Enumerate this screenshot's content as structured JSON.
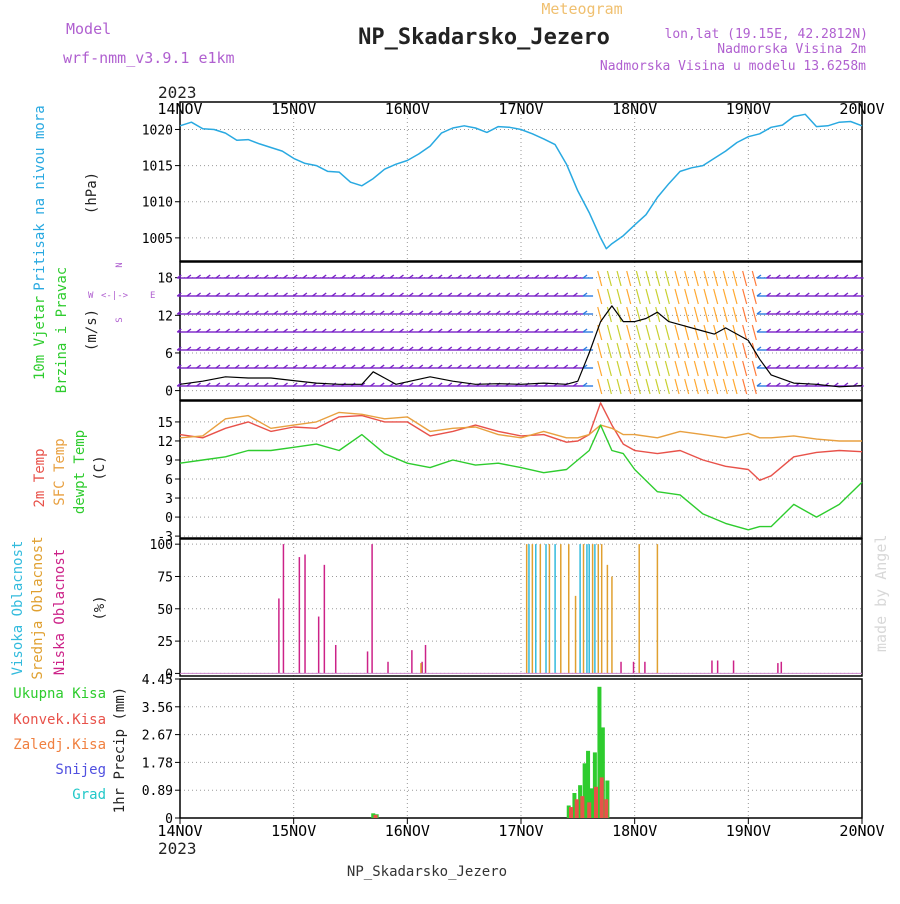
{
  "header": {
    "model_label": "Model",
    "model_name": "wrf-nmm_v3.9.1 e1km",
    "chart_kind": "Meteogram",
    "station": "NP_Skadarsko_Jezero",
    "lonlat": "lon,lat (19.15E, 42.2812N)",
    "altitude": "Nadmorska Visina 2m",
    "model_altitude": "Nadmorska Visina u modelu 13.6258m",
    "footer_station": "NP_Skadarsko_Jezero",
    "watermark": "made by Angel",
    "year_top": "2023",
    "year_bottom": "2023",
    "wind_compass": {
      "n": "N",
      "w": "W",
      "e": "E",
      "s": "S"
    }
  },
  "colors": {
    "pressure": "#29a9e1",
    "wind_speed": "#000000",
    "temp2m": "#e8524a",
    "sfc_temp": "#e8a040",
    "dewpt": "#2ecc2e",
    "cloud_high": "#33bbdd",
    "cloud_mid": "#e0a030",
    "cloud_low": "#cc2288",
    "precip_total": "#2ecc2e",
    "precip_conv": "#e8524a",
    "title_purple": "#b060d0",
    "meteogram_orange": "#f0c070"
  },
  "chart_data": [
    {
      "type": "line",
      "panel": "pressure",
      "ylabel": [
        "Pritisak na nivou mora",
        "(hPa)"
      ],
      "yticks": [
        1005,
        1010,
        1015,
        1020
      ],
      "ylim": [
        1001.8,
        1023.8
      ],
      "xticks": [
        "14NOV",
        "15NOV",
        "16NOV",
        "17NOV",
        "18NOV",
        "19NOV",
        "20NOV"
      ],
      "xlim_days": [
        0,
        6
      ],
      "x": [
        0,
        0.1,
        0.2,
        0.3,
        0.4,
        0.5,
        0.6,
        0.7,
        0.8,
        0.9,
        1.0,
        1.1,
        1.2,
        1.3,
        1.4,
        1.5,
        1.6,
        1.7,
        1.8,
        1.9,
        2.0,
        2.1,
        2.2,
        2.3,
        2.4,
        2.5,
        2.6,
        2.7,
        2.8,
        2.9,
        3.0,
        3.1,
        3.2,
        3.3,
        3.4,
        3.5,
        3.6,
        3.7,
        3.75,
        3.8,
        3.9,
        4.0,
        4.1,
        4.2,
        4.3,
        4.4,
        4.5,
        4.6,
        4.7,
        4.8,
        4.9,
        5.0,
        5.1,
        5.2,
        5.3,
        5.4,
        5.5,
        5.6,
        5.7,
        5.8,
        5.9,
        6.0
      ],
      "values": [
        1020.5,
        1021.0,
        1020.1,
        1020.0,
        1019.5,
        1018.5,
        1018.6,
        1018.0,
        1017.5,
        1017.0,
        1016.0,
        1015.3,
        1015.0,
        1014.2,
        1014.1,
        1012.7,
        1012.2,
        1013.2,
        1014.5,
        1015.2,
        1015.7,
        1016.6,
        1017.7,
        1019.5,
        1020.2,
        1020.5,
        1020.2,
        1019.6,
        1020.4,
        1020.3,
        1020.0,
        1019.4,
        1018.7,
        1017.9,
        1015.2,
        1011.5,
        1008.5,
        1005.0,
        1003.5,
        1004.2,
        1005.3,
        1006.8,
        1008.2,
        1010.6,
        1012.5,
        1014.2,
        1014.7,
        1015.0,
        1016.0,
        1017.0,
        1018.2,
        1019.0,
        1019.4,
        1020.3,
        1020.6,
        1021.8,
        1022.1,
        1020.4,
        1020.5,
        1021.0,
        1021.1,
        1020.5
      ]
    },
    {
      "type": "line",
      "panel": "wind",
      "ylabel": [
        "10m Vjetar",
        "Brzina i Pravac",
        "(m/s)"
      ],
      "yticks": [
        0,
        6,
        12,
        18
      ],
      "ylim": [
        -1.5,
        20.5
      ],
      "x": [
        0,
        0.2,
        0.4,
        0.6,
        0.8,
        1.0,
        1.2,
        1.4,
        1.6,
        1.7,
        1.8,
        1.9,
        2.0,
        2.2,
        2.4,
        2.6,
        2.8,
        3.0,
        3.2,
        3.4,
        3.5,
        3.6,
        3.7,
        3.8,
        3.9,
        4.0,
        4.1,
        4.2,
        4.3,
        4.4,
        4.6,
        4.7,
        4.8,
        5.0,
        5.1,
        5.2,
        5.4,
        5.6,
        5.8,
        6.0
      ],
      "values": [
        1.0,
        1.5,
        2.2,
        2.0,
        2.0,
        1.6,
        1.2,
        1.0,
        1.0,
        3.0,
        2.0,
        1.0,
        1.4,
        2.2,
        1.5,
        1.0,
        1.1,
        1.0,
        1.2,
        1.0,
        1.5,
        6.0,
        11.0,
        13.5,
        11.0,
        11.0,
        11.5,
        12.5,
        11.0,
        10.5,
        9.5,
        9.0,
        10.0,
        8.0,
        5.0,
        2.5,
        1.2,
        1.0,
        0.6,
        0.8
      ]
    },
    {
      "type": "line",
      "panel": "temperature",
      "ylabel": [
        "2m Temp",
        "SFC Temp",
        "dewpt Temp",
        "(C)"
      ],
      "yticks": [
        -3,
        0,
        3,
        6,
        9,
        12,
        15
      ],
      "ylim": [
        -3.3,
        18.3
      ],
      "x": [
        0,
        0.2,
        0.4,
        0.6,
        0.8,
        1.0,
        1.2,
        1.4,
        1.6,
        1.8,
        2.0,
        2.2,
        2.4,
        2.6,
        2.8,
        3.0,
        3.2,
        3.4,
        3.5,
        3.6,
        3.7,
        3.8,
        3.9,
        4.0,
        4.2,
        4.4,
        4.6,
        4.8,
        5.0,
        5.1,
        5.2,
        5.4,
        5.6,
        5.8,
        6.0
      ],
      "series": [
        {
          "name": "2m Temp",
          "color_key": "temp2m",
          "values": [
            13.0,
            12.5,
            14.0,
            15.0,
            13.5,
            14.2,
            14.0,
            15.8,
            16.0,
            15.0,
            15.0,
            12.8,
            13.5,
            14.5,
            13.5,
            12.8,
            13.0,
            11.8,
            12.0,
            13.0,
            18.0,
            14.5,
            11.5,
            10.5,
            10.0,
            10.5,
            9.0,
            8.0,
            7.5,
            5.8,
            6.5,
            9.5,
            10.2,
            10.5,
            10.3
          ]
        },
        {
          "name": "SFC Temp",
          "color_key": "sfc_temp",
          "values": [
            12.5,
            12.8,
            15.5,
            16.0,
            14.0,
            14.5,
            15.0,
            16.5,
            16.2,
            15.5,
            15.8,
            13.5,
            14.0,
            14.2,
            13.0,
            12.5,
            13.5,
            12.5,
            12.5,
            13.0,
            14.5,
            14.0,
            13.0,
            13.0,
            12.5,
            13.5,
            13.0,
            12.5,
            13.2,
            12.5,
            12.5,
            12.8,
            12.3,
            12.0,
            12.0
          ]
        },
        {
          "name": "dewpt Temp",
          "color_key": "dewpt",
          "values": [
            8.5,
            9.0,
            9.5,
            10.5,
            10.5,
            11.0,
            11.5,
            10.5,
            13.0,
            10.0,
            8.5,
            7.8,
            9.0,
            8.2,
            8.5,
            7.8,
            7.0,
            7.5,
            9.0,
            10.5,
            14.5,
            10.5,
            10.0,
            7.5,
            4.0,
            3.5,
            0.5,
            -1.0,
            -2.0,
            -1.5,
            -1.5,
            2.0,
            0.0,
            2.0,
            5.5
          ]
        }
      ]
    },
    {
      "type": "bar",
      "panel": "cloud",
      "ylabel": [
        "Visoka Oblacnost",
        "Srednja Oblacnost",
        "Niska Oblacnost",
        "(%)"
      ],
      "yticks": [
        0,
        25,
        50,
        75,
        100
      ],
      "ylim": [
        -2,
        104
      ],
      "series": [
        {
          "name": "Niska Oblacnost",
          "color_key": "cloud_low",
          "x": [
            0.87,
            0.91,
            1.05,
            1.1,
            1.22,
            1.27,
            1.37,
            1.65,
            1.69,
            1.83,
            2.04,
            2.13,
            2.16,
            3.88,
            3.99,
            4.09,
            4.68,
            4.73,
            4.87,
            5.26,
            5.29
          ],
          "values": [
            58,
            100,
            90,
            92,
            44,
            84,
            22,
            17,
            100,
            9,
            18,
            9,
            22,
            9,
            9,
            9,
            10,
            10,
            10,
            8,
            9
          ]
        },
        {
          "name": "Srednja Oblacnost",
          "color_key": "cloud_mid",
          "x": [
            2.12,
            3.05,
            3.1,
            3.17,
            3.25,
            3.35,
            3.42,
            3.48,
            3.55,
            3.63,
            3.68,
            3.71,
            3.76,
            3.8,
            4.04,
            4.2
          ],
          "values": [
            8,
            100,
            100,
            100,
            100,
            100,
            100,
            60,
            100,
            100,
            100,
            100,
            84,
            75,
            100,
            100
          ]
        },
        {
          "name": "Visoka Oblacnost",
          "color_key": "cloud_high",
          "x": [
            3.07,
            3.13,
            3.22,
            3.3,
            3.52,
            3.58,
            3.6,
            3.65
          ],
          "values": [
            100,
            100,
            100,
            100,
            100,
            100,
            100,
            100
          ]
        }
      ]
    },
    {
      "type": "bar",
      "panel": "precip",
      "ylabel": [
        "1hr Precip (mm)"
      ],
      "legend": [
        "Ukupna Kisa",
        "Konvek.Kisa",
        "Zaledj.Kisa",
        "Snijeg",
        "Grad"
      ],
      "yticks": [
        0,
        0.89,
        1.78,
        2.67,
        3.56,
        4.45
      ],
      "ytick_labels": [
        "0",
        "0.89",
        "1.78",
        "2.67",
        "3.56",
        "4.45"
      ],
      "ylim": [
        0,
        4.45
      ],
      "xlim_days": [
        0,
        6
      ],
      "series": [
        {
          "name": "Ukupna Kisa",
          "color_key": "precip_total",
          "x": [
            1.7,
            1.73,
            3.42,
            3.47,
            3.52,
            3.56,
            3.59,
            3.62,
            3.65,
            3.69,
            3.72,
            3.76
          ],
          "values": [
            0.15,
            0.12,
            0.4,
            0.8,
            1.05,
            1.75,
            2.15,
            0.95,
            2.1,
            4.2,
            2.9,
            1.2
          ]
        },
        {
          "name": "Konvek.Kisa",
          "color_key": "precip_conv",
          "x": [
            1.72,
            3.44,
            3.49,
            3.54,
            3.6,
            3.66,
            3.71,
            3.75
          ],
          "values": [
            0.1,
            0.35,
            0.6,
            0.7,
            0.5,
            1.0,
            1.3,
            0.6
          ]
        }
      ]
    }
  ]
}
